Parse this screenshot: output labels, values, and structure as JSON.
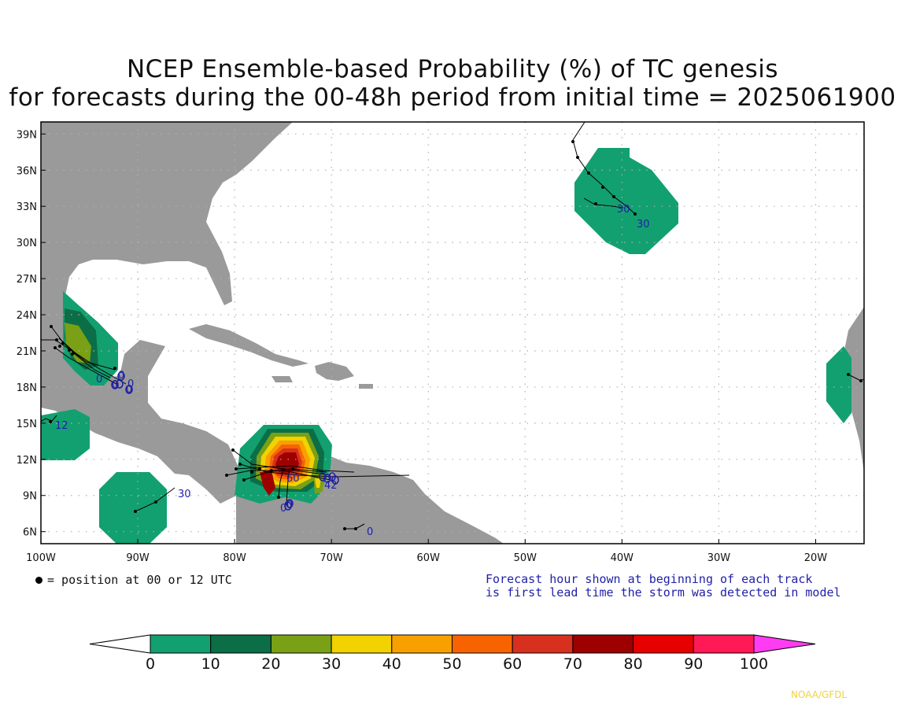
{
  "title": {
    "line1": "NCEP Ensemble-based Probability (%) of TC genesis",
    "line2": "for forecasts during the 00-48h period from initial time = 2025061900"
  },
  "map": {
    "lon_range": [
      -100,
      -15
    ],
    "lat_range": [
      5,
      40
    ],
    "lat_labels": [
      "39N",
      "36N",
      "33N",
      "30N",
      "27N",
      "24N",
      "21N",
      "18N",
      "15N",
      "12N",
      "9N",
      "6N"
    ],
    "lon_labels": [
      "100W",
      "90W",
      "80W",
      "70W",
      "60W",
      "50W",
      "40W",
      "30W",
      "20W"
    ],
    "colors": {
      "land": "#9a9a9a",
      "ocean": "#ffffff",
      "grid": "#b0b0b0",
      "track": "#000000",
      "track_label": "#1f1fa8"
    }
  },
  "notes": {
    "legend": "= position at 00 or 12 UTC",
    "forecast_line1": "Forecast hour shown at beginning of each track",
    "forecast_line2": "is first lead time the storm was detected in model"
  },
  "colorbar": {
    "labels": [
      "0",
      "10",
      "20",
      "30",
      "40",
      "50",
      "60",
      "70",
      "80",
      "90",
      "100"
    ],
    "colors": [
      "#13a070",
      "#0c6e46",
      "#7aa016",
      "#f2d200",
      "#f7a000",
      "#f76300",
      "#d7301f",
      "#9e0000",
      "#e60000",
      "#ff1a55",
      "#ff3cf2"
    ]
  },
  "track_labels": [
    {
      "text": "0"
    },
    {
      "text": "0"
    },
    {
      "text": "0"
    },
    {
      "text": "0"
    },
    {
      "text": "0"
    },
    {
      "text": "12"
    },
    {
      "text": "30"
    },
    {
      "text": "60"
    },
    {
      "text": "0"
    },
    {
      "text": "42"
    },
    {
      "text": "0"
    },
    {
      "text": "0"
    },
    {
      "text": "30"
    },
    {
      "text": "30"
    }
  ],
  "credit": "NOAA/GFDL"
}
